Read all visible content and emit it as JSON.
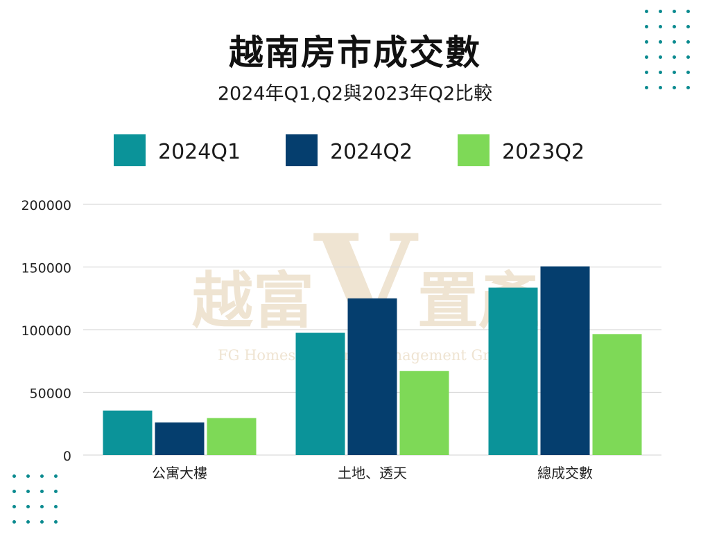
{
  "title": "越南房市成交數",
  "subtitle": "2024年Q1,Q2與2023年Q2比較",
  "watermark": {
    "main_left": "越富",
    "main_letter": "V",
    "main_right": "置產",
    "sub": "FG Homes Property Management Group"
  },
  "colors": {
    "series_2024Q1": "#0b9399",
    "series_2024Q2": "#053e6e",
    "series_2023Q2": "#7ed957",
    "dots": "#0b8a8f",
    "grid": "#d9d9d9",
    "watermark": "#efe4d2"
  },
  "chart_data": {
    "type": "bar",
    "categories": [
      "公寓大樓",
      "土地、透天",
      "總成交數"
    ],
    "series": [
      {
        "name": "2024Q1",
        "values": [
          35500,
          97500,
          133500
        ]
      },
      {
        "name": "2024Q2",
        "values": [
          26000,
          125000,
          150500
        ]
      },
      {
        "name": "2023Q2",
        "values": [
          29500,
          67000,
          96500
        ]
      }
    ],
    "ylim": [
      0,
      200000
    ],
    "yticks": [
      0,
      50000,
      100000,
      150000,
      200000
    ],
    "ytick_labels": [
      "0",
      "50000",
      "100000",
      "150000",
      "200000"
    ],
    "grid": true,
    "legend": "top"
  }
}
